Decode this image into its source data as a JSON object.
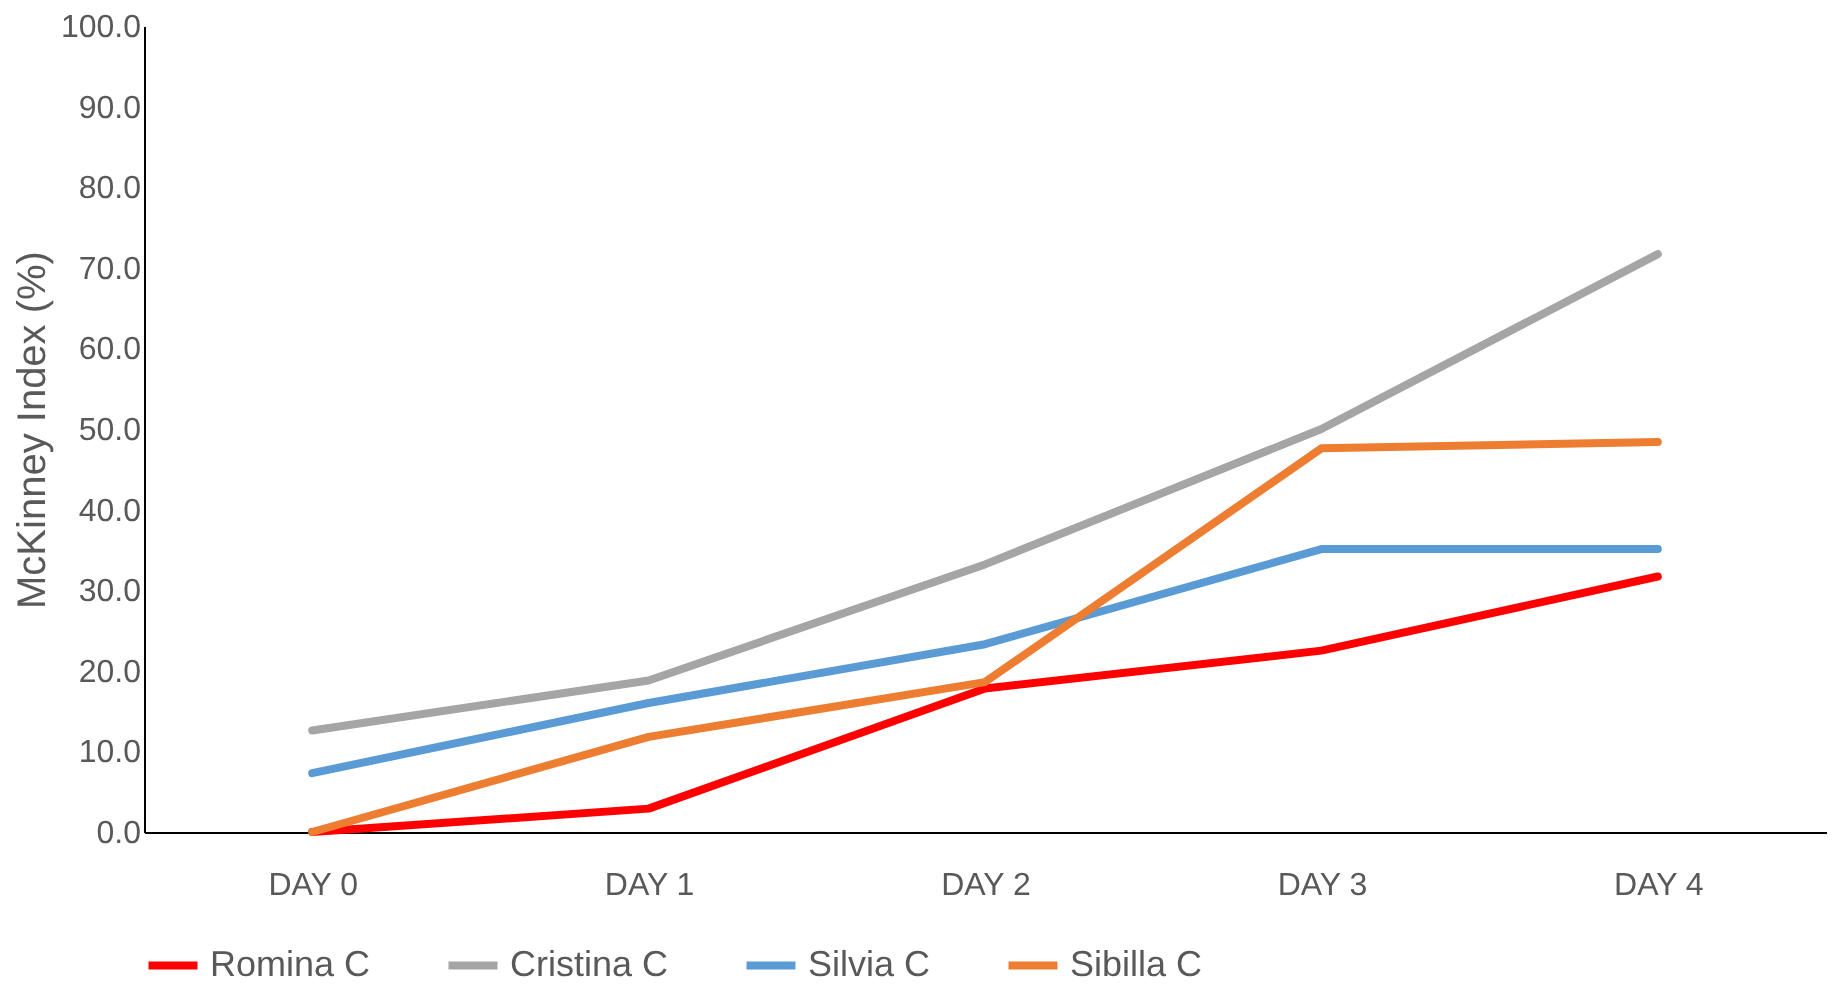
{
  "chart_data": {
    "type": "line",
    "ylabel": "McKinney Index (%)",
    "categories": [
      "DAY 0",
      "DAY 1",
      "DAY 2",
      "DAY 3",
      "DAY 4"
    ],
    "series": [
      {
        "name": "Romina C",
        "color": "#ff0000",
        "values": [
          0.0,
          2.9,
          17.8,
          22.5,
          31.7
        ]
      },
      {
        "name": "Cristina C",
        "color": "#a5a5a5",
        "values": [
          12.6,
          18.8,
          33.2,
          50.0,
          71.7
        ]
      },
      {
        "name": "Silvia C",
        "color": "#5b9bd5",
        "values": [
          7.3,
          16.0,
          23.3,
          35.1,
          35.1
        ]
      },
      {
        "name": "Sibilla C",
        "color": "#ed7d31",
        "values": [
          0.0,
          11.8,
          18.6,
          47.6,
          48.4
        ]
      }
    ],
    "ylim": [
      0,
      100
    ],
    "yticks": [
      {
        "value": 0,
        "label": "0.0"
      },
      {
        "value": 10,
        "label": "10.0"
      },
      {
        "value": 20,
        "label": "20.0"
      },
      {
        "value": 30,
        "label": "30.0"
      },
      {
        "value": 40,
        "label": "40.0"
      },
      {
        "value": 50,
        "label": "50.0"
      },
      {
        "value": 60,
        "label": "60.0"
      },
      {
        "value": 70,
        "label": "70.0"
      },
      {
        "value": 80,
        "label": "80.0"
      },
      {
        "value": 90,
        "label": "90.0"
      },
      {
        "value": 100,
        "label": "100.0"
      }
    ],
    "grid": false,
    "legend": "bottom",
    "line_style": "solid"
  }
}
